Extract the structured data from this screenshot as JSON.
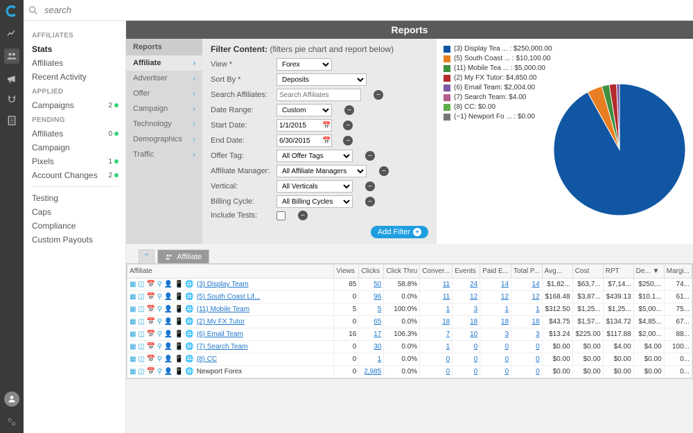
{
  "search": {
    "placeholder": "search"
  },
  "sidebar": {
    "groups": [
      {
        "title": "AFFILIATES",
        "items": [
          {
            "label": "Stats",
            "active": true
          },
          {
            "label": "Affiliates"
          },
          {
            "label": "Recent Activity"
          }
        ]
      },
      {
        "title": "APPLIED",
        "items": [
          {
            "label": "Campaigns",
            "count": "2",
            "dot": "#35d47a"
          }
        ]
      },
      {
        "title": "PENDING",
        "items": [
          {
            "label": "Affiliates",
            "count": "0",
            "dot": "#35d47a"
          },
          {
            "label": "Campaign"
          },
          {
            "label": "Pixels",
            "count": "1",
            "dot": "#35d47a"
          },
          {
            "label": "Account Changes",
            "count": "2",
            "dot": "#35d47a"
          }
        ]
      }
    ],
    "footer": [
      "Testing",
      "Caps",
      "Compliance",
      "Custom Payouts"
    ]
  },
  "reports": {
    "title": "Reports",
    "nav_title": "Reports",
    "nav": [
      "Affiliate",
      "Advertiser",
      "Offer",
      "Campaign",
      "Technology",
      "Demographics",
      "Traffic"
    ],
    "active_nav": 0,
    "filter_title_bold": "Filter Content:",
    "filter_title_rest": "(filters pie chart and report below)",
    "filters": {
      "view": {
        "label": "View *",
        "value": "Forex"
      },
      "sort": {
        "label": "Sort By *",
        "value": "Deposits"
      },
      "search_aff": {
        "label": "Search Affiliates:",
        "placeholder": "Search Affiliates"
      },
      "date_range": {
        "label": "Date Range:",
        "value": "Custom"
      },
      "start": {
        "label": "Start Date:",
        "value": "1/1/2015"
      },
      "end": {
        "label": "End Date:",
        "value": "6/30/2015"
      },
      "offer_tag": {
        "label": "Offer Tag:",
        "value": "All Offer Tags"
      },
      "aff_mgr": {
        "label": "Affiliate Manager:",
        "value": "All Affiliate Managers"
      },
      "vertical": {
        "label": "Vertical:",
        "value": "All Verticals"
      },
      "billing": {
        "label": "Billing Cycle:",
        "value": "All Billing Cycles"
      },
      "tests": {
        "label": "Include Tests:"
      }
    },
    "add_filter": "Add Filter"
  },
  "chart": {
    "type": "pie",
    "background": "#ffffff",
    "slices": [
      {
        "label": "(3) Display Tea ... : $250,000.00",
        "color": "#1056a3",
        "value": 250000
      },
      {
        "label": "(5) South Coast ... : $10,100.00",
        "color": "#e77f22",
        "value": 10100
      },
      {
        "label": "(11) Mobile Tea ... : $5,000.00",
        "color": "#3e8f3e",
        "value": 5000
      },
      {
        "label": "(2) My FX Tutor: $4,850.00",
        "color": "#b42b2b",
        "value": 4850
      },
      {
        "label": "(6) Email Team: $2,004.00",
        "color": "#7c5aa6",
        "value": 2004
      },
      {
        "label": "(7) Search Team: $4.00",
        "color": "#b15f8a",
        "value": 4
      },
      {
        "label": "(8) CC: $0.00",
        "color": "#5fae4b",
        "value": 0
      },
      {
        "label": "(−1) Newport Fo ... : $0.00",
        "color": "#777777",
        "value": 0
      }
    ]
  },
  "grid": {
    "tab_label": "Affiliate",
    "columns": [
      "Affiliate",
      "Views",
      "Clicks",
      "Click Thru",
      "Conver...",
      "Events",
      "Paid E...",
      "Total P...",
      "Avg...",
      "Cost",
      "RPT",
      "De... ▼",
      "Margi..."
    ],
    "rows": [
      {
        "name": "(3) Display Team",
        "link": true,
        "views": "85",
        "clicks": "50",
        "ct": "58.8%",
        "conv": "11",
        "events": "24",
        "paid": "14",
        "total": "14",
        "avg": "$1,82...",
        "cost": "$63,7...",
        "rpt": "$7,14...",
        "de": "$250,...",
        "m": "74..."
      },
      {
        "name": "(5) South Coast Lif...",
        "link": true,
        "views": "0",
        "clicks": "96",
        "ct": "0.0%",
        "conv": "11",
        "events": "12",
        "paid": "12",
        "total": "12",
        "avg": "$168.48",
        "cost": "$3,87...",
        "rpt": "$439.13",
        "de": "$10,1...",
        "m": "61..."
      },
      {
        "name": "(11) Mobile Team",
        "link": true,
        "views": "5",
        "clicks": "5",
        "ct": "100.0%",
        "conv": "1",
        "events": "3",
        "paid": "1",
        "total": "1",
        "avg": "$312.50",
        "cost": "$1,25...",
        "rpt": "$1,25...",
        "de": "$5,00...",
        "m": "75..."
      },
      {
        "name": "(2) My FX Tutor",
        "link": true,
        "views": "0",
        "clicks": "65",
        "ct": "0.0%",
        "conv": "18",
        "events": "18",
        "paid": "18",
        "total": "18",
        "avg": "$43.75",
        "cost": "$1,57...",
        "rpt": "$134.72",
        "de": "$4,85...",
        "m": "67..."
      },
      {
        "name": "(6) Email Team",
        "link": true,
        "views": "16",
        "clicks": "17",
        "ct": "106.3%",
        "conv": "7",
        "events": "10",
        "paid": "3",
        "total": "3",
        "avg": "$13.24",
        "cost": "$225.00",
        "rpt": "$117.88",
        "de": "$2,00...",
        "m": "88..."
      },
      {
        "name": "(7) Search Team",
        "link": true,
        "views": "0",
        "clicks": "30",
        "ct": "0.0%",
        "conv": "1",
        "events": "0",
        "paid": "0",
        "total": "0",
        "avg": "$0.00",
        "cost": "$0.00",
        "rpt": "$4.00",
        "de": "$4.00",
        "m": "100..."
      },
      {
        "name": "(8) CC",
        "link": true,
        "views": "0",
        "clicks": "1",
        "ct": "0.0%",
        "conv": "0",
        "events": "0",
        "paid": "0",
        "total": "0",
        "avg": "$0.00",
        "cost": "$0.00",
        "rpt": "$0.00",
        "de": "$0.00",
        "m": "0..."
      },
      {
        "name": "Newport Forex",
        "link": false,
        "views": "0",
        "clicks": "2,985",
        "ct": "0.0%",
        "conv": "0",
        "events": "0",
        "paid": "0",
        "total": "0",
        "avg": "$0.00",
        "cost": "$0.00",
        "rpt": "$0.00",
        "de": "$0.00",
        "m": "0..."
      }
    ]
  }
}
